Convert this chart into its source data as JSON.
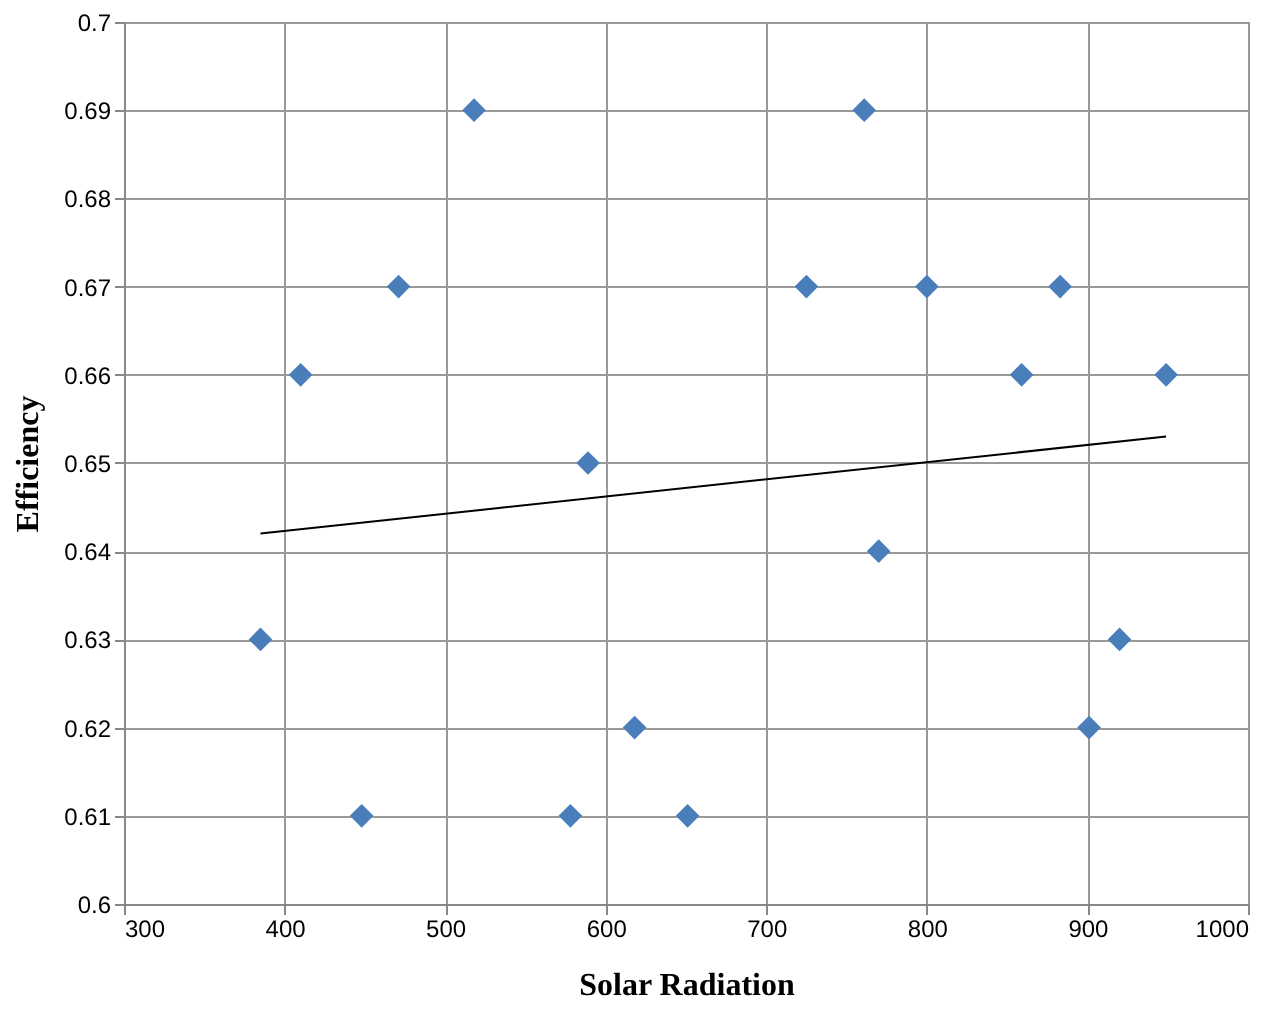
{
  "chart_data": {
    "type": "scatter",
    "xlabel": "Solar Radiation",
    "ylabel": "Efficiency",
    "xlim": [
      300,
      1000
    ],
    "xticks": [
      300,
      400,
      500,
      600,
      700,
      800,
      900,
      1000
    ],
    "ylim": [
      0.6,
      0.7
    ],
    "yticks": [
      0.6,
      0.61,
      0.62,
      0.63,
      0.64,
      0.65,
      0.66,
      0.67,
      0.68,
      0.69,
      0.7
    ],
    "grid": true,
    "marker": "diamond",
    "series": [
      {
        "type": "scatter",
        "color": "#4a7ebb",
        "x": [
          385,
          410,
          471,
          448,
          518,
          589,
          578,
          618,
          651,
          725,
          761,
          770,
          800,
          859,
          883,
          901,
          920,
          949
        ],
        "values": [
          0.63,
          0.66,
          0.67,
          0.61,
          0.69,
          0.65,
          0.61,
          0.62,
          0.61,
          0.67,
          0.69,
          0.64,
          0.67,
          0.66,
          0.67,
          0.62,
          0.63,
          0.66
        ]
      },
      {
        "type": "line",
        "marker": "none",
        "line_style": "solid",
        "color": "#000000",
        "x": [
          385,
          949
        ],
        "values": [
          0.642,
          0.653
        ]
      }
    ]
  }
}
